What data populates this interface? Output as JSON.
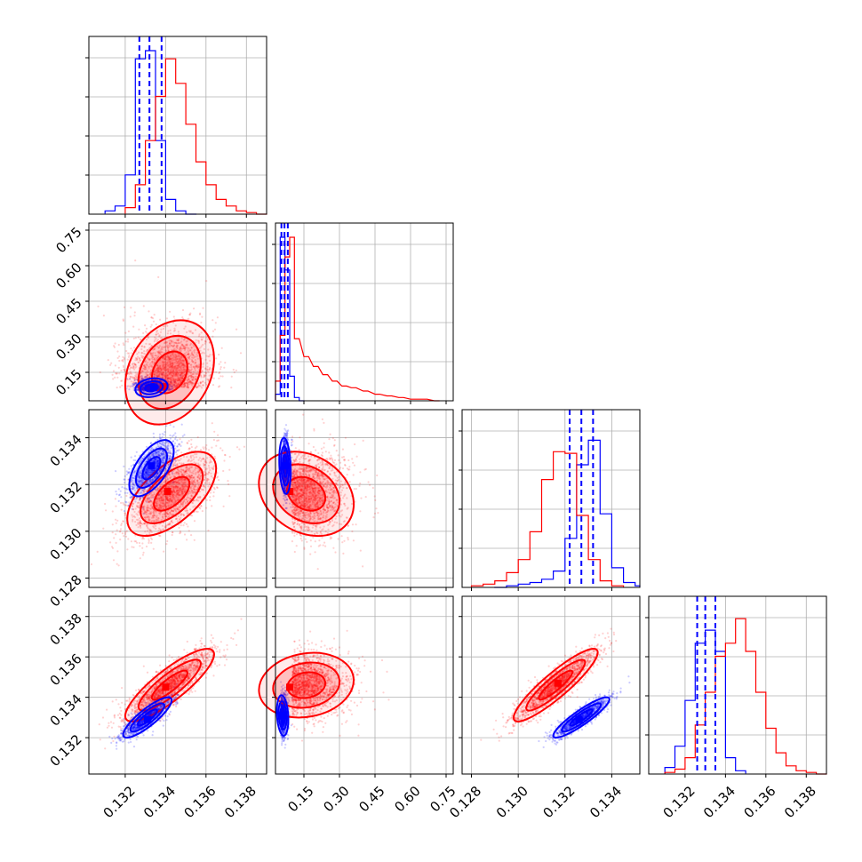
{
  "colors": {
    "series_a": "#0000ff",
    "series_b": "#ff0000",
    "grid": "#b0b0b0",
    "frame": "#000000"
  },
  "chart_data": {
    "type": "corner",
    "title": "",
    "series": [
      {
        "name": "",
        "color": "#0000ff"
      },
      {
        "name": "",
        "color": "#ff0000"
      }
    ],
    "params": [
      {
        "range": [
          0.1302,
          0.139
        ],
        "ticks": [
          "0.132",
          "0.134",
          "0.136",
          "0.138"
        ]
      },
      {
        "range": [
          0.03,
          0.78
        ],
        "ticks": [
          "0.15",
          "0.30",
          "0.45",
          "0.60",
          "0.75"
        ]
      },
      {
        "range": [
          0.1276,
          0.1352
        ],
        "ticks": [
          "0.128",
          "0.130",
          "0.132",
          "0.134"
        ]
      },
      {
        "range": [
          0.1302,
          0.139
        ],
        "ticks": [
          "0.132",
          "0.134",
          "0.136",
          "0.138"
        ]
      }
    ],
    "marginals": [
      {
        "param": 0,
        "quantiles": {
          "series_a": [
            0.1327,
            0.1332,
            0.1338
          ]
        },
        "hist": {
          "series_a": {
            "x": [
              0.131,
              0.1315,
              0.132,
              0.1325,
              0.133,
              0.1335,
              0.134,
              0.1345,
              0.135
            ],
            "y": [
              0.02,
              0.05,
              0.24,
              0.95,
              1.0,
              0.45,
              0.09,
              0.02,
              0.0
            ]
          },
          "series_b": {
            "x": [
              0.132,
              0.1325,
              0.133,
              0.1335,
              0.134,
              0.1345,
              0.135,
              0.1355,
              0.136,
              0.1365,
              0.137,
              0.1375,
              0.138,
              0.1385
            ],
            "y": [
              0.04,
              0.18,
              0.45,
              0.72,
              0.95,
              0.8,
              0.55,
              0.32,
              0.18,
              0.09,
              0.05,
              0.02,
              0.01,
              0.0
            ]
          }
        }
      },
      {
        "param": 1,
        "quantiles": {
          "series_a": [
            0.055,
            0.068,
            0.082
          ]
        },
        "hist": {
          "series_a": {
            "x": [
              0.03,
              0.05,
              0.07,
              0.09,
              0.11,
              0.13
            ],
            "y": [
              0.04,
              1.0,
              0.8,
              0.15,
              0.02,
              0.0
            ]
          },
          "series_b": {
            "x": [
              0.03,
              0.05,
              0.07,
              0.09,
              0.11,
              0.15,
              0.19,
              0.23,
              0.27,
              0.31,
              0.35,
              0.4,
              0.45,
              0.5,
              0.55,
              0.6,
              0.65,
              0.7
            ],
            "y": [
              0.12,
              0.4,
              0.88,
              1.0,
              0.38,
              0.27,
              0.21,
              0.16,
              0.12,
              0.09,
              0.08,
              0.06,
              0.04,
              0.03,
              0.02,
              0.01,
              0.01,
              0.0
            ]
          }
        }
      },
      {
        "param": 2,
        "quantiles": {
          "series_a": [
            0.1322,
            0.1327,
            0.1332
          ]
        },
        "hist": {
          "series_a": {
            "x": [
              0.129,
              0.1295,
              0.13,
              0.1305,
              0.131,
              0.1315,
              0.132,
              0.1325,
              0.133,
              0.1335,
              0.134,
              0.1345,
              0.135
            ],
            "y": [
              0.0,
              0.01,
              0.02,
              0.03,
              0.05,
              0.1,
              0.3,
              0.75,
              0.9,
              0.45,
              0.12,
              0.03,
              0.01
            ]
          },
          "series_b": {
            "x": [
              0.128,
              0.1285,
              0.129,
              0.1295,
              0.13,
              0.1305,
              0.131,
              0.1315,
              0.132,
              0.1325,
              0.133,
              0.1335,
              0.134
            ],
            "y": [
              0.01,
              0.02,
              0.04,
              0.09,
              0.17,
              0.34,
              0.66,
              0.83,
              0.82,
              0.44,
              0.17,
              0.04,
              0.01
            ]
          }
        }
      },
      {
        "param": 3,
        "quantiles": {
          "series_a": [
            0.1326,
            0.133,
            0.1335
          ]
        },
        "hist": {
          "series_a": {
            "x": [
              0.131,
              0.1315,
              0.132,
              0.1325,
              0.133,
              0.1335,
              0.134,
              0.1345
            ],
            "y": [
              0.04,
              0.17,
              0.45,
              0.8,
              0.88,
              0.75,
              0.1,
              0.02
            ]
          },
          "series_b": {
            "x": [
              0.131,
              0.1315,
              0.132,
              0.1325,
              0.133,
              0.1335,
              0.134,
              0.1345,
              0.135,
              0.1355,
              0.136,
              0.1365,
              0.137,
              0.1375,
              0.138,
              0.1385
            ],
            "y": [
              0.01,
              0.03,
              0.1,
              0.3,
              0.5,
              0.72,
              0.8,
              0.95,
              0.75,
              0.5,
              0.28,
              0.13,
              0.05,
              0.02,
              0.01,
              0.0
            ]
          }
        }
      }
    ],
    "pairs": [
      {
        "x_param": 0,
        "y_param": 1,
        "series_a": {
          "mean": [
            0.1333,
            0.085
          ],
          "sd": [
            0.0004,
            0.02
          ],
          "corr": 0.2,
          "max": [
            0.1334,
            0.085
          ]
        },
        "series_b": {
          "mean": [
            0.1342,
            0.15
          ],
          "sd": [
            0.0011,
            0.11
          ],
          "corr": 0.25,
          "max": [
            0.1339,
            0.09
          ]
        }
      },
      {
        "x_param": 0,
        "y_param": 2,
        "series_a": {
          "mean": [
            0.1333,
            0.1327
          ],
          "sd": [
            0.00055,
            0.0006
          ],
          "corr": 0.6,
          "max": [
            0.1333,
            0.1328
          ]
        },
        "series_b": {
          "mean": [
            0.1343,
            0.1316
          ],
          "sd": [
            0.0011,
            0.0009
          ],
          "corr": 0.6,
          "max": [
            0.1341,
            0.1317
          ]
        }
      },
      {
        "x_param": 1,
        "y_param": 2,
        "series_a": {
          "mean": [
            0.07,
            0.1328
          ],
          "sd": [
            0.012,
            0.0006
          ],
          "corr": -0.2,
          "max": [
            0.07,
            0.1328
          ]
        },
        "series_b": {
          "mean": [
            0.16,
            0.1316
          ],
          "sd": [
            0.1,
            0.0009
          ],
          "corr": -0.25,
          "max": [
            0.09,
            0.1317
          ]
        }
      },
      {
        "x_param": 0,
        "y_param": 3,
        "series_a": {
          "mean": [
            0.1331,
            0.133
          ],
          "sd": [
            0.0006,
            0.0005
          ],
          "corr": 0.85,
          "max": [
            0.1331,
            0.1329
          ]
        },
        "series_b": {
          "mean": [
            0.1342,
            0.1346
          ],
          "sd": [
            0.0011,
            0.0009
          ],
          "corr": 0.85,
          "max": [
            0.134,
            0.1345
          ]
        }
      },
      {
        "x_param": 1,
        "y_param": 3,
        "series_a": {
          "mean": [
            0.06,
            0.1331
          ],
          "sd": [
            0.012,
            0.0005
          ],
          "corr": -0.2,
          "max": [
            0.06,
            0.1331
          ]
        },
        "series_b": {
          "mean": [
            0.16,
            0.1346
          ],
          "sd": [
            0.1,
            0.0008
          ],
          "corr": 0.15,
          "max": [
            0.09,
            0.1345
          ]
        }
      },
      {
        "x_param": 2,
        "y_param": 3,
        "series_a": {
          "mean": [
            0.1327,
            0.133
          ],
          "sd": [
            0.0006,
            0.0005
          ],
          "corr": 0.9,
          "max": [
            0.1326,
            0.1329
          ]
        },
        "series_b": {
          "mean": [
            0.1316,
            0.1346
          ],
          "sd": [
            0.0009,
            0.0009
          ],
          "corr": 0.9,
          "max": [
            0.1317,
            0.1347
          ]
        }
      }
    ],
    "grid": true,
    "legend": "none"
  }
}
